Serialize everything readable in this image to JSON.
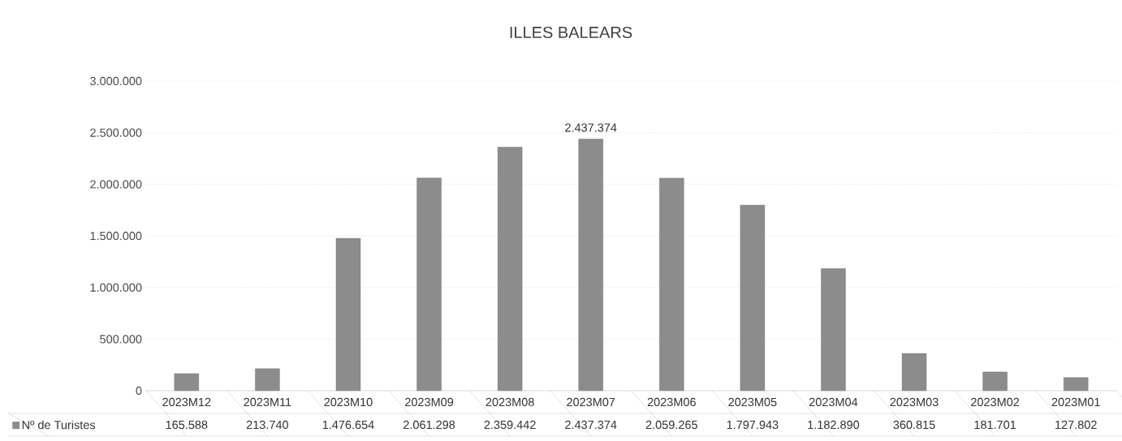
{
  "chart_data": {
    "type": "bar",
    "title": "ILLES BALEARS",
    "categories": [
      "2023M12",
      "2023M11",
      "2023M10",
      "2023M09",
      "2023M08",
      "2023M07",
      "2023M06",
      "2023M05",
      "2023M04",
      "2023M03",
      "2023M02",
      "2023M01"
    ],
    "series": [
      {
        "name": "Nº de Turistes",
        "color": "#8c8c8c",
        "values": [
          165588,
          213740,
          1476654,
          2061298,
          2359442,
          2437374,
          2059265,
          1797943,
          1182890,
          360815,
          181701,
          127802
        ]
      }
    ],
    "value_labels": [
      "165.588",
      "213.740",
      "1.476.654",
      "2.061.298",
      "2.359.442",
      "2.437.374",
      "2.059.265",
      "1.797.943",
      "1.182.890",
      "360.815",
      "181.701",
      "127.802"
    ],
    "annotations": [
      {
        "text": "2.437.374",
        "x": "2023M07",
        "y": 2437374
      }
    ],
    "ylim": [
      0,
      3000000
    ],
    "yticks": [
      {
        "value": 0,
        "label": "0"
      },
      {
        "value": 500000,
        "label": "500.000"
      },
      {
        "value": 1000000,
        "label": "1.000.000"
      },
      {
        "value": 1500000,
        "label": "1.500.000"
      },
      {
        "value": 2000000,
        "label": "2.000.000"
      },
      {
        "value": 2500000,
        "label": "2.500.000"
      },
      {
        "value": 3000000,
        "label": "3.000.000"
      }
    ],
    "grid": "y",
    "legend": "bottom"
  }
}
